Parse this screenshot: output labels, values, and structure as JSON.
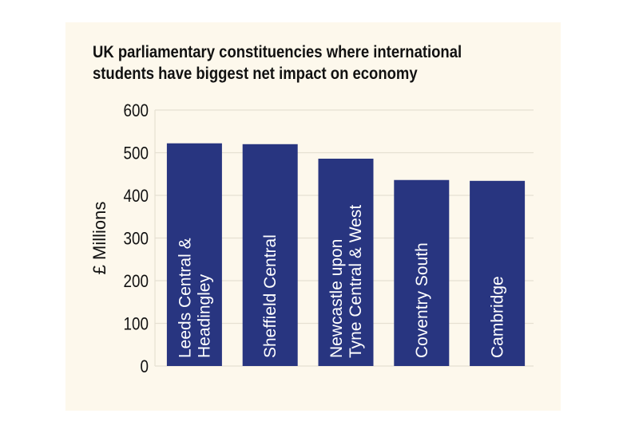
{
  "chart_data": {
    "type": "bar",
    "title": "UK parliamentary constituencies where international students have biggest net impact on economy",
    "title_lines": [
      "UK parliamentary constituencies where international",
      "students have biggest net impact on economy"
    ],
    "xlabel": "",
    "ylabel": "£ Millions",
    "ylim": [
      0,
      600
    ],
    "yticks": [
      0,
      100,
      200,
      300,
      400,
      500,
      600
    ],
    "grid": true,
    "categories": [
      [
        "Leeds Central &",
        "Headingley"
      ],
      [
        "Sheffield Central"
      ],
      [
        "Newcastle upon",
        "Tyne Central & West"
      ],
      [
        "Coventry South"
      ],
      [
        "Cambridge"
      ]
    ],
    "values": [
      522,
      520,
      486,
      436,
      434
    ],
    "colors": {
      "bar": "#283580",
      "background": "#fdf8ec",
      "grid": "#e6e0d2",
      "label": "#ffffff"
    }
  }
}
